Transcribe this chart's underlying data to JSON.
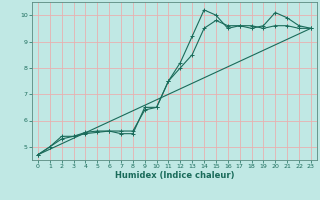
{
  "xlabel": "Humidex (Indice chaleur)",
  "bg_color": "#c0e8e4",
  "grid_color": "#e8b0b0",
  "line_color": "#1a6b5a",
  "spine_color": "#5a8a80",
  "xlim": [
    -0.5,
    23.5
  ],
  "ylim": [
    4.5,
    10.5
  ],
  "xticks": [
    0,
    1,
    2,
    3,
    4,
    5,
    6,
    7,
    8,
    9,
    10,
    11,
    12,
    13,
    14,
    15,
    16,
    17,
    18,
    19,
    20,
    21,
    22,
    23
  ],
  "yticks": [
    5,
    6,
    7,
    8,
    9,
    10
  ],
  "line1_x": [
    0,
    1,
    2,
    3,
    4,
    5,
    6,
    7,
    8,
    9,
    10,
    11,
    12,
    13,
    14,
    15,
    16,
    17,
    18,
    19,
    20,
    21,
    22,
    23
  ],
  "line1_y": [
    4.7,
    5.0,
    5.3,
    5.4,
    5.5,
    5.55,
    5.6,
    5.5,
    5.5,
    6.5,
    6.5,
    7.5,
    8.2,
    9.2,
    10.2,
    10.0,
    9.5,
    9.6,
    9.5,
    9.6,
    10.1,
    9.9,
    9.6,
    9.5
  ],
  "line2_x": [
    0,
    1,
    2,
    3,
    4,
    5,
    6,
    7,
    8,
    9,
    10,
    11,
    12,
    13,
    14,
    15,
    16,
    17,
    18,
    19,
    20,
    21,
    22,
    23
  ],
  "line2_y": [
    4.7,
    5.0,
    5.4,
    5.4,
    5.55,
    5.6,
    5.6,
    5.6,
    5.6,
    6.4,
    6.5,
    7.5,
    8.0,
    8.5,
    9.5,
    9.8,
    9.6,
    9.6,
    9.6,
    9.5,
    9.6,
    9.6,
    9.5,
    9.5
  ],
  "line3_x": [
    0,
    23
  ],
  "line3_y": [
    4.7,
    9.5
  ]
}
